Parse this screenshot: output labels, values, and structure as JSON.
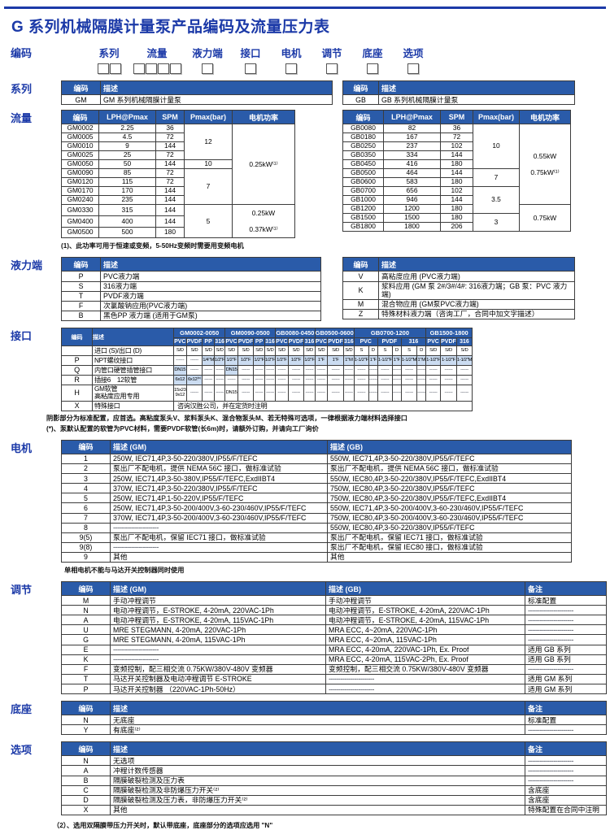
{
  "page": {
    "title": "G 系列机械隔膜计量泵产品编码及流量压力表"
  },
  "coding": {
    "label": "编码",
    "groups": [
      {
        "label": "系列",
        "boxes": 2
      },
      {
        "label": "流量",
        "boxes": 4
      },
      {
        "label": "液力端",
        "boxes": 1
      },
      {
        "label": "接口",
        "boxes": 1
      },
      {
        "label": "电机",
        "boxes": 1
      },
      {
        "label": "调节",
        "boxes": 1
      },
      {
        "label": "底座",
        "boxes": 1
      },
      {
        "label": "选项",
        "boxes": 1
      }
    ]
  },
  "series": {
    "label": "系列",
    "headers": [
      "编码",
      "描述"
    ],
    "gm_rows": [
      [
        "GM",
        "GM 系列机械隔膜计量泵"
      ]
    ],
    "gb_rows": [
      [
        "GB",
        "GB 系列机械隔膜计量泵"
      ]
    ]
  },
  "flow": {
    "label": "流量",
    "headers": [
      "编码",
      "LPH@Pmax",
      "SPM",
      "Pmax(bar)",
      "电机功率"
    ],
    "gm": {
      "rows": [
        [
          "GM0002",
          "2.25",
          "36"
        ],
        [
          "GM0005",
          "4.5",
          "72"
        ],
        [
          "GM0010",
          "9",
          "144"
        ],
        [
          "GM0025",
          "25",
          "72"
        ],
        [
          "GM0050",
          "50",
          "144"
        ],
        [
          "GM0090",
          "85",
          "72"
        ],
        [
          "GM0120",
          "115",
          "72"
        ],
        [
          "GM0170",
          "170",
          "144"
        ],
        [
          "GM0240",
          "235",
          "144"
        ],
        [
          "GM0330",
          "315",
          "144"
        ],
        [
          "GM0400",
          "400",
          "144"
        ],
        [
          "GM0500",
          "500",
          "180"
        ]
      ],
      "pmax": [
        {
          "v": "12",
          "span": 4
        },
        {
          "v": "10",
          "span": 1
        },
        {
          "v": "7",
          "span": 4
        },
        {
          "v": "5",
          "span": 3
        }
      ],
      "power": [
        {
          "v": "0.25kW⁽¹⁾",
          "span": 9
        },
        {
          "v": "0.25kW\n0.37kW⁽¹⁾",
          "span": 3
        }
      ]
    },
    "gb": {
      "rows": [
        [
          "GB0080",
          "82",
          "36"
        ],
        [
          "GB0180",
          "167",
          "72"
        ],
        [
          "GB0250",
          "237",
          "102"
        ],
        [
          "GB0350",
          "334",
          "144"
        ],
        [
          "GB0450",
          "416",
          "180"
        ],
        [
          "GB0500",
          "464",
          "144"
        ],
        [
          "GB0600",
          "583",
          "180"
        ],
        [
          "GB0700",
          "656",
          "102"
        ],
        [
          "GB1000",
          "946",
          "144"
        ],
        [
          "GB1200",
          "1200",
          "180"
        ],
        [
          "GB1500",
          "1500",
          "180"
        ],
        [
          "GB1800",
          "1800",
          "206"
        ]
      ],
      "pmax": [
        {
          "v": "10",
          "span": 5
        },
        {
          "v": "7",
          "span": 2
        },
        {
          "v": "3.5",
          "span": 3
        },
        {
          "v": "3",
          "span": 2
        }
      ],
      "power": [
        {
          "v": "0.55kW\n0.75kW⁽¹⁾",
          "span": 9
        },
        {
          "v": "0.75kW",
          "span": 3
        }
      ]
    },
    "footnote": "(1)、此功率可用于恒速或变频，5-50Hz变频时需要用变频电机"
  },
  "liquid_end": {
    "label": "液力端",
    "headers": [
      "编码",
      "描述"
    ],
    "left_rows": [
      [
        "P",
        "PVC液力端"
      ],
      [
        "S",
        "316液力端"
      ],
      [
        "T",
        "PVDF液力端"
      ],
      [
        "F",
        "次氯酸钠应用(PVC液力端)"
      ],
      [
        "B",
        "黑色PP 液力端 (适用于GM泵)"
      ]
    ],
    "right_rows": [
      [
        "V",
        "高粘度应用 (PVC液力端)"
      ],
      [
        "K",
        "浆料应用 (GM 泵 2#/3#/4#: 316液力端；GB 泵：PVC 液力端)"
      ],
      [
        "M",
        "混合物应用 (GM泵PVC液力端)"
      ],
      [
        "Z",
        "特殊材料液力端（咨询工厂，合同中加文字描述）"
      ]
    ]
  },
  "interface": {
    "label": "接口",
    "code_header": "编码",
    "desc_header": "描述",
    "groups": [
      {
        "name": "GM0002-0050",
        "cols": [
          "PVC",
          "PVDF",
          "PP",
          "316"
        ],
        "split": false
      },
      {
        "name": "GM0090-0500",
        "cols": [
          "PVC",
          "PVDF",
          "PP",
          "316"
        ],
        "split": false
      },
      {
        "name": "GB0080-0450",
        "cols": [
          "PVC",
          "PVDF",
          "316"
        ],
        "split": false
      },
      {
        "name": "GB0500-0600",
        "cols": [
          "PVC",
          "PVDF",
          "316"
        ],
        "split": false
      },
      {
        "name": "GB0700-1200",
        "cols": [
          "PVC",
          "PVDF",
          "316"
        ],
        "split": true
      },
      {
        "name": "GB1500-1800",
        "cols": [
          "PVC",
          "PVDF",
          "316"
        ],
        "split": false
      }
    ],
    "rows": [
      {
        "code": "",
        "desc": "进口 (S)/出口 (D)",
        "shade": false,
        "values": [
          "S/D",
          "S/D",
          "S/D",
          "S/D",
          "S/D",
          "S/D",
          "S/D",
          "S/D",
          "S/D",
          "S/D",
          "S/D",
          "S/D",
          "S/D",
          "S/D",
          "S",
          "D",
          "S",
          "D",
          "S",
          "D",
          "S/D",
          "S/D",
          "S/D"
        ]
      },
      {
        "code": "P",
        "desc": "NPT螺纹接口",
        "shade": true,
        "values": [
          "------",
          "------",
          "1/4\"M",
          "1/2\"F",
          "1/2\"F",
          "1/2\"F",
          "1/2\"F",
          "1/2\"F",
          "1/2\"F",
          "1/2\"F",
          "1/2\"F",
          "1\"F",
          "1\"F",
          "1\"M",
          "1-1/2\"F",
          "1\"F",
          "1-1/2\"F",
          "1\"F",
          "1-1/2\"M",
          "1\"M",
          "1-1/2\"F",
          "1-1/2\"F",
          "1-1/2\"M"
        ]
      },
      {
        "code": "Q",
        "desc": "内管口硬管插管接口",
        "shade": true,
        "values": [
          "DN15",
          "------",
          "------",
          "------",
          "DN15",
          "------",
          "------",
          "------",
          "------",
          "------",
          "------",
          "------",
          "------",
          "------",
          "------",
          "------",
          "------",
          "------",
          "------",
          "------",
          "------",
          "------",
          "------"
        ]
      },
      {
        "code": "R",
        "desc": "插接6　12软管",
        "shade": true,
        "values": [
          "6x12",
          "6x12⁽*⁾",
          "------",
          "------",
          "------",
          "------",
          "------",
          "------",
          "------",
          "------",
          "------",
          "------",
          "------",
          "------",
          "------",
          "------",
          "------",
          "------",
          "------",
          "------",
          "------",
          "------",
          "------"
        ]
      },
      {
        "code": "H",
        "desc": "GM软管\n高粘度应用专用",
        "shade": false,
        "values": [
          "15x23\n9x12",
          "------",
          "------",
          "------",
          "DN15",
          "------",
          "------",
          "------",
          "------",
          "------",
          "------",
          "------",
          "------",
          "------",
          "------",
          "------",
          "------",
          "------",
          "------",
          "------",
          "------",
          "------",
          "------"
        ]
      },
      {
        "code": "X",
        "desc": "特殊接口",
        "shade": false,
        "span_value": "咨询汉胜公司，并在定货时注明"
      }
    ],
    "footnotes": [
      "阴影部分为标准配置，应首选。高粘度泵头V、浆料泵头K、混合物泵头M、若无特殊可选项，一律根据液力端材料选择接口",
      "(*)、泵默认配置的软管为PVC材料，需要PVDF软管(长6m)时，请额外订购，并请向工厂询价"
    ]
  },
  "motor": {
    "label": "电机",
    "headers": [
      "编码",
      "描述 (GM)",
      "描述 (GB)"
    ],
    "rows": [
      [
        "1",
        "250W, IEC71,4P,3-50-220/380V,IP55/F/TEFC",
        "550W, IEC71,4P,3-50-220/380V,IP55/F/TEFC"
      ],
      [
        "2",
        "泵出厂不配电机，提供 NEMA 56C 接口，做标准试验",
        "泵出厂不配电机，提供 NEMA 56C 接口，做标准试验"
      ],
      [
        "3",
        "250W, IEC71,4P,3-50-380V,IP55/F/TEFC,ExdIIBT4",
        "550W, IEC80,4P,3-50-220/380V,IP55/F/TEFC,ExdIIBT4"
      ],
      [
        "4",
        "370W, IEC71,4P,3-50-220/380V,IP55/F/TEFC",
        "750W, IEC80,4P,3-50-220/380V,IP55/F/TEFC"
      ],
      [
        "5",
        "250W, IEC71,4P,1-50-220V,IP55/F/TEFC",
        "750W, IEC80,4P,3-50-220/380V,IP55/F/TEFC,ExdIIBT4"
      ],
      [
        "6",
        "250W, IEC71,4P,3-50-200/400V,3-60-230/460V,IP55/F/TEFC",
        "550W, IEC71,4P,3-50-200/400V,3-60-230/460V,IP55/F/TEFC"
      ],
      [
        "7",
        "370W, IEC71,4P,3-50-200/400V,3-60-230/460V,IP55/F/TEFC",
        "750W, IEC80,4P,3-50-200/400V,3-60-230/460V,IP55/F/TEFC"
      ],
      [
        "8",
        "-----------------------",
        "550W, IEC80,4P,3-50-220/380V,IP55/F/TEFC"
      ],
      [
        "9(5)",
        "泵出厂不配电机，保留 IEC71 接口，做标准试验",
        "泵出厂不配电机，保留 IEC71 接口，做标准试验"
      ],
      [
        "9(8)",
        "-----------------------",
        "泵出厂不配电机，保留 IEC80 接口，做标准试验"
      ],
      [
        "9",
        "其他",
        "其他"
      ]
    ],
    "footnote": "单相电机不能与马达开关控制器同时使用"
  },
  "regulation": {
    "label": "调节",
    "headers": [
      "编码",
      "描述 (GM)",
      "描述 (GB)",
      "备注"
    ],
    "rows": [
      [
        "M",
        "手动冲程调节",
        "手动冲程调节",
        "标准配置"
      ],
      [
        "N",
        "电动冲程调节，E-STROKE, 4-20mA, 220VAC-1Ph",
        "电动冲程调节，E-STROKE, 4-20mA, 220VAC-1Ph",
        "-----------------------"
      ],
      [
        "A",
        "电动冲程调节，E-STROKE, 4-20mA, 115VAC-1Ph",
        "电动冲程调节，E-STROKE, 4-20mA, 115VAC-1Ph",
        "-----------------------"
      ],
      [
        "U",
        "MRE STEGMANN, 4-20mA, 220VAC-1Ph",
        "MRA ECC, 4~20mA, 220VAC-1Ph",
        "-----------------------"
      ],
      [
        "G",
        "MRE STEGMANN, 4-20mA, 115VAC-1Ph",
        "MRA ECC, 4~20mA, 115VAC-1Ph",
        "-----------------------"
      ],
      [
        "E",
        "-----------------------",
        "MRA ECC, 4-20mA, 220VAC-1Ph, Ex. Proof",
        "适用 GB 系列"
      ],
      [
        "K",
        "-----------------------",
        "MRA ECC, 4-20mA, 115VAC-2Ph, Ex. Proof",
        "适用 GB 系列"
      ],
      [
        "F",
        "变频控制，配三相交流 0.75KW/380V-480V 变频器",
        "变频控制，配三相交流 0.75KW/380V-480V 变频器",
        "-----------------------"
      ],
      [
        "T",
        "马达开关控制器及电动冲程调节 E-STROKE",
        "-----------------------",
        "适用 GM 系列"
      ],
      [
        "P",
        "马达开关控制器 （220VAC-1Ph-50Hz）",
        "-----------------------",
        "适用 GM 系列"
      ]
    ]
  },
  "base": {
    "label": "底座",
    "headers": [
      "编码",
      "描述",
      "备注"
    ],
    "rows": [
      [
        "N",
        "无底座",
        "标准配置"
      ],
      [
        "Y",
        "有底座⁽²⁾",
        "-----------------------"
      ]
    ]
  },
  "options": {
    "label": "选项",
    "headers": [
      "编码",
      "描述",
      "备注"
    ],
    "rows": [
      [
        "N",
        "无选项",
        "-----------------------"
      ],
      [
        "A",
        "冲程计数传感器",
        "-----------------------"
      ],
      [
        "B",
        "隔膜破裂检测及压力表",
        "-----------------------"
      ],
      [
        "C",
        "隔膜破裂检测及非防爆压力开关⁽²⁾",
        "含底座"
      ],
      [
        "D",
        "隔膜破裂检测及压力表，非防爆压力开关⁽²⁾",
        "含底座"
      ],
      [
        "X",
        "其他",
        "特殊配置在合同中注明"
      ]
    ],
    "footnote": "（2）、选用双隔膜带压力开关时，默认带底座，底座部分的选项应选用 \"N\""
  }
}
